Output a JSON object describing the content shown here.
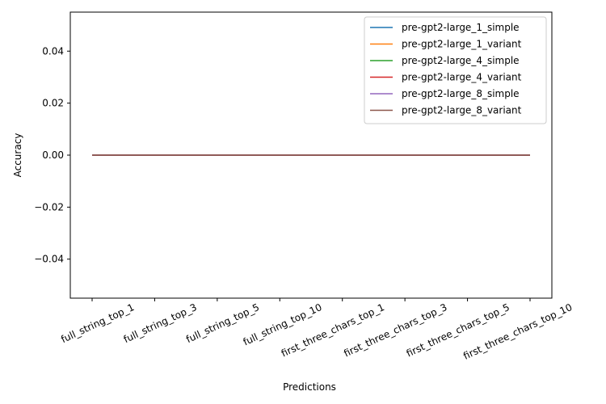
{
  "chart_data": {
    "type": "line",
    "xlabel": "Predictions",
    "ylabel": "Accuracy",
    "categories": [
      "full_string_top_1",
      "full_string_top_3",
      "full_string_top_5",
      "full_string_top_10",
      "first_three_chars_top_1",
      "first_three_chars_top_3",
      "first_three_chars_top_5",
      "first_three_chars_top_10"
    ],
    "ylim": [
      -0.055,
      0.055
    ],
    "yticks": [
      0.04,
      0.02,
      0.0,
      -0.02,
      -0.04
    ],
    "ytick_labels": [
      "0.04",
      "0.02",
      "0.00",
      "−0.02",
      "−0.04"
    ],
    "grid": false,
    "legend_position": "top-right",
    "series": [
      {
        "name": "pre-gpt2-large_1_simple",
        "color": "#1f77b4",
        "values": [
          0,
          0,
          0,
          0,
          0,
          0,
          0,
          0
        ]
      },
      {
        "name": "pre-gpt2-large_1_variant",
        "color": "#ff7f0e",
        "values": [
          0,
          0,
          0,
          0,
          0,
          0,
          0,
          0
        ]
      },
      {
        "name": "pre-gpt2-large_4_simple",
        "color": "#2ca02c",
        "values": [
          0,
          0,
          0,
          0,
          0,
          0,
          0,
          0
        ]
      },
      {
        "name": "pre-gpt2-large_4_variant",
        "color": "#d62728",
        "values": [
          0,
          0,
          0,
          0,
          0,
          0,
          0,
          0
        ]
      },
      {
        "name": "pre-gpt2-large_8_simple",
        "color": "#9467bd",
        "values": [
          0,
          0,
          0,
          0,
          0,
          0,
          0,
          0
        ]
      },
      {
        "name": "pre-gpt2-large_8_variant",
        "color": "#8c564b",
        "values": [
          0,
          0,
          0,
          0,
          0,
          0,
          0,
          0
        ]
      }
    ]
  }
}
